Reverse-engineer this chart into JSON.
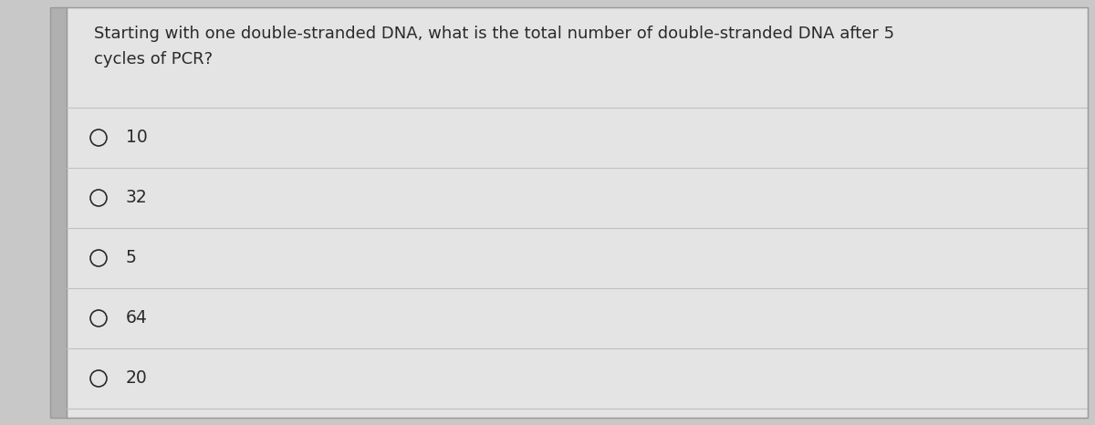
{
  "question_line1": "Starting with one double-stranded DNA, what is the total number of double-stranded DNA after 5",
  "question_line2": "cycles of PCR?",
  "options": [
    "10",
    "32",
    "5",
    "64",
    "20"
  ],
  "bg_color": "#c8c8c8",
  "panel_color": "#e4e4e4",
  "left_strip_color": "#b0b0b0",
  "border_color": "#999999",
  "text_color": "#2a2a2a",
  "line_color": "#c0c0c0",
  "title_fontsize": 13.0,
  "option_fontsize": 13.5
}
